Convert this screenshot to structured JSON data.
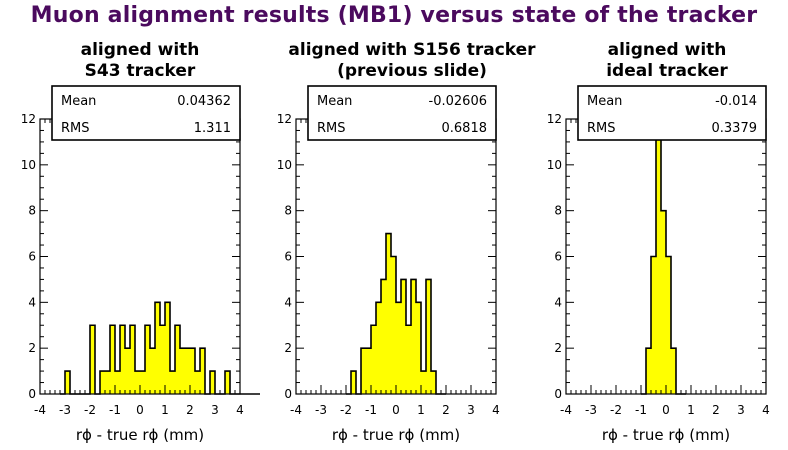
{
  "title": "Muon alignment results (MB1) versus state of the tracker",
  "colors": {
    "title": "#4b0a5e",
    "fill": "#ffff00",
    "line": "#000000"
  },
  "chart_data": [
    {
      "type": "bar",
      "subtitle": [
        "aligned with",
        "S43 tracker"
      ],
      "xlabel": "rϕ - true rϕ (mm)",
      "ylabel": "",
      "xlim": [
        -4,
        4
      ],
      "ylim": [
        0,
        12
      ],
      "x_ticks": [
        -4,
        -3,
        -2,
        -1,
        0,
        1,
        2,
        3,
        4
      ],
      "y_ticks": [
        0,
        2,
        4,
        6,
        8,
        10,
        12
      ],
      "bin_width": 0.2,
      "bin_start": -3.2,
      "values": [
        0,
        1,
        0,
        0,
        0,
        0,
        3,
        0,
        1,
        1,
        3,
        1,
        3,
        2,
        3,
        1,
        1,
        3,
        2,
        4,
        3,
        4,
        1,
        3,
        2,
        2,
        2,
        1,
        2,
        0,
        1,
        0,
        0,
        1,
        0,
        0,
        0,
        0,
        0,
        0
      ],
      "stats": {
        "mean_label": "Mean",
        "mean": "0.04362",
        "rms_label": "RMS",
        "rms": "1.311"
      }
    },
    {
      "type": "bar",
      "subtitle": [
        "aligned with S156 tracker",
        "(previous slide)"
      ],
      "xlabel": "rϕ - true rϕ (mm)",
      "ylabel": "",
      "xlim": [
        -4,
        4
      ],
      "ylim": [
        0,
        12
      ],
      "x_ticks": [
        -4,
        -3,
        -2,
        -1,
        0,
        1,
        2,
        3,
        4
      ],
      "y_ticks": [
        0,
        2,
        4,
        6,
        8,
        10,
        12
      ],
      "bin_width": 0.2,
      "bin_start": -2.0,
      "values": [
        0,
        1,
        0,
        2,
        2,
        3,
        4,
        5,
        7,
        6,
        4,
        5,
        3,
        5,
        4,
        1,
        5,
        1,
        0,
        0
      ],
      "stats": {
        "mean_label": "Mean",
        "mean": "-0.02606",
        "rms_label": "RMS",
        "rms": "0.6818"
      }
    },
    {
      "type": "bar",
      "subtitle": [
        "aligned with",
        "ideal tracker"
      ],
      "xlabel": "rϕ - true rϕ (mm)",
      "ylabel": "",
      "xlim": [
        -4,
        4
      ],
      "ylim": [
        0,
        12
      ],
      "x_ticks": [
        -4,
        -3,
        -2,
        -1,
        0,
        1,
        2,
        3,
        4
      ],
      "y_ticks": [
        0,
        2,
        4,
        6,
        8,
        10,
        12
      ],
      "bin_width": 0.2,
      "bin_start": -1.0,
      "values": [
        0,
        2,
        6,
        12,
        8,
        6,
        2,
        0,
        0
      ],
      "stats": {
        "mean_label": "Mean",
        "mean": "-0.014",
        "rms_label": "RMS",
        "rms": "0.3379"
      }
    }
  ]
}
